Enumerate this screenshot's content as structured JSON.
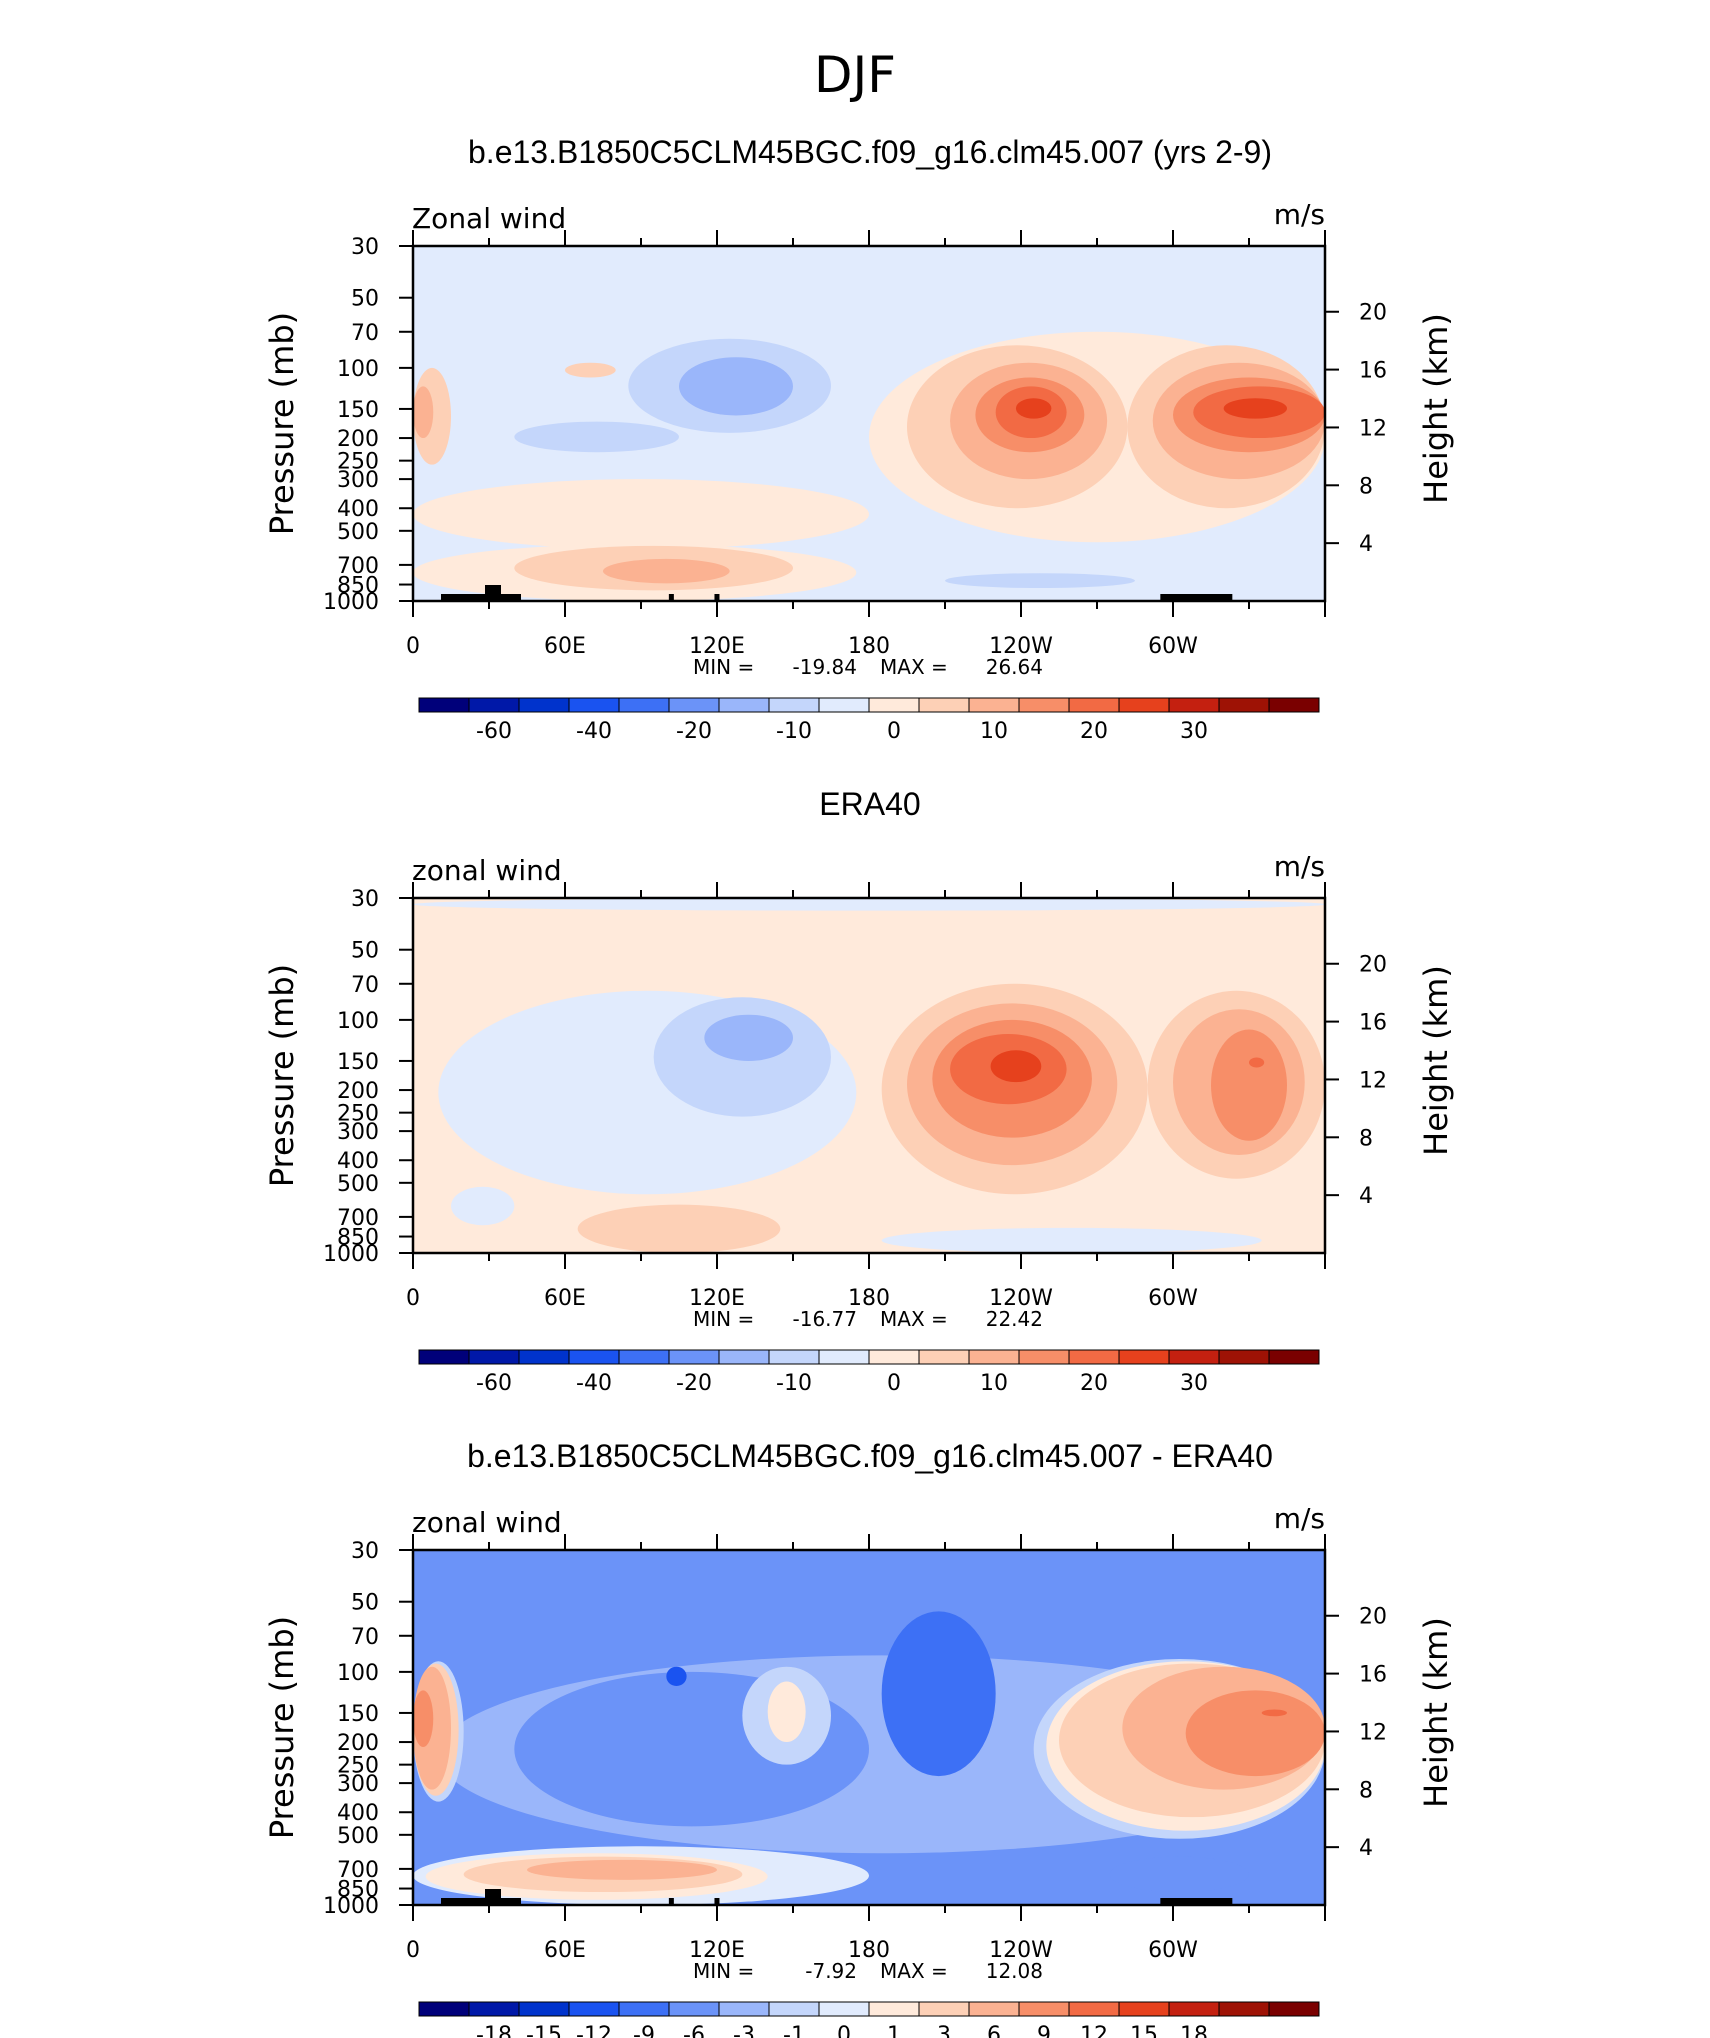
{
  "page": {
    "title": "DJF"
  },
  "axes": {
    "pressure_label": "Pressure (mb)",
    "height_label": "Height (km)",
    "units": "m/s",
    "pressure_ticks": [
      "30",
      "50",
      "70",
      "100",
      "150",
      "200",
      "250",
      "300",
      "400",
      "500",
      "700",
      "850",
      "1000"
    ],
    "pressure_values": [
      30,
      50,
      70,
      100,
      150,
      200,
      250,
      300,
      400,
      500,
      700,
      850,
      1000
    ],
    "height_ticks": [
      "20",
      "16",
      "12",
      "8",
      "4"
    ],
    "height_values": [
      20,
      16,
      12,
      8,
      4
    ],
    "lon_ticks": [
      "0",
      "60E",
      "120E",
      "180",
      "120W",
      "60W"
    ],
    "lon_values": [
      0,
      60,
      120,
      180,
      240,
      300
    ]
  },
  "colors": {
    "full_scale": [
      "#00007a",
      "#0018a8",
      "#0033cc",
      "#1a53f0",
      "#3d70f5",
      "#6b93f8",
      "#9ab6fa",
      "#c4d6fb",
      "#e1ebfd",
      "#ffeadb",
      "#fdd0b6",
      "#fbb292",
      "#f78e68",
      "#f26a44",
      "#e6411d",
      "#c42010",
      "#9e1205",
      "#7a0000"
    ],
    "land": "#000000"
  },
  "panels": [
    {
      "title": "b.e13.B1850C5CLM45BGC.f09_g16.clm45.007 (yrs 2-9)",
      "field_label": "Zonal wind",
      "min_label": "MIN =",
      "min_value": "-19.84",
      "max_label": "MAX =",
      "max_value": "26.64",
      "background_level": 8,
      "colorbar_labels": [
        "-60",
        "-40",
        "-20",
        "-10",
        "0",
        "10",
        "20",
        "30"
      ],
      "colorbar_label_positions": [
        1,
        3,
        5,
        7,
        9,
        11,
        13,
        15
      ],
      "blobs": [
        {
          "lon": [
            85,
            165
          ],
          "p": [
            75,
            190
          ],
          "level": 7
        },
        {
          "lon": [
            105,
            150
          ],
          "p": [
            90,
            160
          ],
          "level": 6
        },
        {
          "lon": [
            40,
            105
          ],
          "p": [
            170,
            230
          ],
          "level": 7
        },
        {
          "lon": [
            0,
            15
          ],
          "p": [
            100,
            260
          ],
          "level": 10
        },
        {
          "lon": [
            0,
            8
          ],
          "p": [
            120,
            200
          ],
          "level": 11
        },
        {
          "lon": [
            60,
            80
          ],
          "p": [
            95,
            110
          ],
          "level": 10
        },
        {
          "lon": [
            0,
            180
          ],
          "p": [
            300,
            600
          ],
          "level": 9
        },
        {
          "lon": [
            0,
            175
          ],
          "p": [
            570,
            1000
          ],
          "level": 9
        },
        {
          "lon": [
            40,
            150
          ],
          "p": [
            580,
            900
          ],
          "level": 10
        },
        {
          "lon": [
            75,
            125
          ],
          "p": [
            660,
            840
          ],
          "level": 11
        },
        {
          "lon": [
            180,
            360
          ],
          "p": [
            70,
            560
          ],
          "level": 9
        },
        {
          "lon": [
            195,
            282
          ],
          "p": [
            80,
            400
          ],
          "level": 10
        },
        {
          "lon": [
            212,
            274
          ],
          "p": [
            95,
            300
          ],
          "level": 11
        },
        {
          "lon": [
            222,
            265
          ],
          "p": [
            110,
            230
          ],
          "level": 12
        },
        {
          "lon": [
            230,
            258
          ],
          "p": [
            120,
            200
          ],
          "level": 13
        },
        {
          "lon": [
            238,
            252
          ],
          "p": [
            135,
            165
          ],
          "level": 14
        },
        {
          "lon": [
            282,
            360
          ],
          "p": [
            80,
            400
          ],
          "level": 10
        },
        {
          "lon": [
            292,
            360
          ],
          "p": [
            95,
            300
          ],
          "level": 11
        },
        {
          "lon": [
            300,
            360
          ],
          "p": [
            110,
            230
          ],
          "level": 12
        },
        {
          "lon": [
            308,
            360
          ],
          "p": [
            120,
            200
          ],
          "level": 13
        },
        {
          "lon": [
            320,
            345
          ],
          "p": [
            135,
            165
          ],
          "level": 14
        },
        {
          "lon": [
            210,
            285
          ],
          "p": [
            760,
            880
          ],
          "level": 7
        }
      ],
      "land": true
    },
    {
      "title": "ERA40",
      "field_label": "zonal wind",
      "min_label": "MIN =",
      "min_value": "-16.77",
      "max_label": "MAX =",
      "max_value": "22.42",
      "background_level": 9,
      "colorbar_labels": [
        "-60",
        "-40",
        "-20",
        "-10",
        "0",
        "10",
        "20",
        "30"
      ],
      "colorbar_label_positions": [
        1,
        3,
        5,
        7,
        9,
        11,
        13,
        15
      ],
      "blobs": [
        {
          "lon": [
            0,
            360
          ],
          "p": [
            30,
            34
          ],
          "level": 8
        },
        {
          "lon": [
            10,
            175
          ],
          "p": [
            75,
            560
          ],
          "level": 8
        },
        {
          "lon": [
            95,
            165
          ],
          "p": [
            80,
            260
          ],
          "level": 7
        },
        {
          "lon": [
            115,
            150
          ],
          "p": [
            95,
            150
          ],
          "level": 6
        },
        {
          "lon": [
            185,
            290
          ],
          "p": [
            70,
            560
          ],
          "level": 10
        },
        {
          "lon": [
            195,
            278
          ],
          "p": [
            85,
            420
          ],
          "level": 11
        },
        {
          "lon": [
            205,
            268
          ],
          "p": [
            100,
            320
          ],
          "level": 12
        },
        {
          "lon": [
            212,
            258
          ],
          "p": [
            115,
            230
          ],
          "level": 13
        },
        {
          "lon": [
            228,
            248
          ],
          "p": [
            135,
            185
          ],
          "level": 14
        },
        {
          "lon": [
            290,
            360
          ],
          "p": [
            75,
            480
          ],
          "level": 10
        },
        {
          "lon": [
            300,
            352
          ],
          "p": [
            90,
            380
          ],
          "level": 11
        },
        {
          "lon": [
            315,
            345
          ],
          "p": [
            110,
            330
          ],
          "level": 12
        },
        {
          "lon": [
            330,
            336
          ],
          "p": [
            145,
            160
          ],
          "level": 13
        },
        {
          "lon": [
            65,
            145
          ],
          "p": [
            620,
            1000
          ],
          "level": 10
        },
        {
          "lon": [
            185,
            335
          ],
          "p": [
            780,
            1000
          ],
          "level": 8
        },
        {
          "lon": [
            15,
            40
          ],
          "p": [
            520,
            760
          ],
          "level": 8
        }
      ],
      "land": false
    },
    {
      "title": "b.e13.B1850C5CLM45BGC.f09_g16.clm45.007 - ERA40",
      "field_label": "zonal wind",
      "min_label": "MIN =",
      "min_value": "-7.92",
      "max_label": "MAX =",
      "max_value": "12.08",
      "background_level": 5,
      "colorbar_labels": [
        "-18",
        "-15",
        "-12",
        "-9",
        "-6",
        "-3",
        "-1",
        "0",
        "1",
        "3",
        "6",
        "9",
        "12",
        "15",
        "18"
      ],
      "colorbar_label_positions": [
        1,
        2,
        3,
        4,
        5,
        6,
        7,
        8,
        9,
        10,
        11,
        12,
        13,
        14,
        15
      ],
      "blobs": [
        {
          "lon": [
            10,
            360
          ],
          "p": [
            85,
            600
          ],
          "level": 6
        },
        {
          "lon": [
            40,
            180
          ],
          "p": [
            100,
            460
          ],
          "level": 5
        },
        {
          "lon": [
            130,
            165
          ],
          "p": [
            95,
            250
          ],
          "level": 7
        },
        {
          "lon": [
            140,
            155
          ],
          "p": [
            110,
            200
          ],
          "level": 9
        },
        {
          "lon": [
            185,
            230
          ],
          "p": [
            55,
            280
          ],
          "level": 4
        },
        {
          "lon": [
            100,
            108
          ],
          "p": [
            95,
            115
          ],
          "level": 3
        },
        {
          "lon": [
            0,
            20
          ],
          "p": [
            90,
            360
          ],
          "level": 7
        },
        {
          "lon": [
            0,
            18
          ],
          "p": [
            92,
            340
          ],
          "level": 10
        },
        {
          "lon": [
            0,
            15
          ],
          "p": [
            95,
            320
          ],
          "level": 11
        },
        {
          "lon": [
            0,
            8
          ],
          "p": [
            120,
            210
          ],
          "level": 12
        },
        {
          "lon": [
            245,
            360
          ],
          "p": [
            88,
            520
          ],
          "level": 7
        },
        {
          "lon": [
            250,
            360
          ],
          "p": [
            90,
            480
          ],
          "level": 9
        },
        {
          "lon": [
            255,
            360
          ],
          "p": [
            92,
            420
          ],
          "level": 10
        },
        {
          "lon": [
            280,
            360
          ],
          "p": [
            95,
            320
          ],
          "level": 11
        },
        {
          "lon": [
            305,
            360
          ],
          "p": [
            120,
            280
          ],
          "level": 12
        },
        {
          "lon": [
            335,
            345
          ],
          "p": [
            145,
            155
          ],
          "level": 13
        },
        {
          "lon": [
            0,
            180
          ],
          "p": [
            560,
            1000
          ],
          "level": 8
        },
        {
          "lon": [
            5,
            140
          ],
          "p": [
            600,
            950
          ],
          "level": 9
        },
        {
          "lon": [
            20,
            130
          ],
          "p": [
            620,
            880
          ],
          "level": 10
        },
        {
          "lon": [
            45,
            120
          ],
          "p": [
            640,
            780
          ],
          "level": 11
        },
        {
          "lon": [
            275,
            330
          ],
          "p": [
            620,
            880
          ],
          "level": 5
        }
      ],
      "land": true
    }
  ]
}
